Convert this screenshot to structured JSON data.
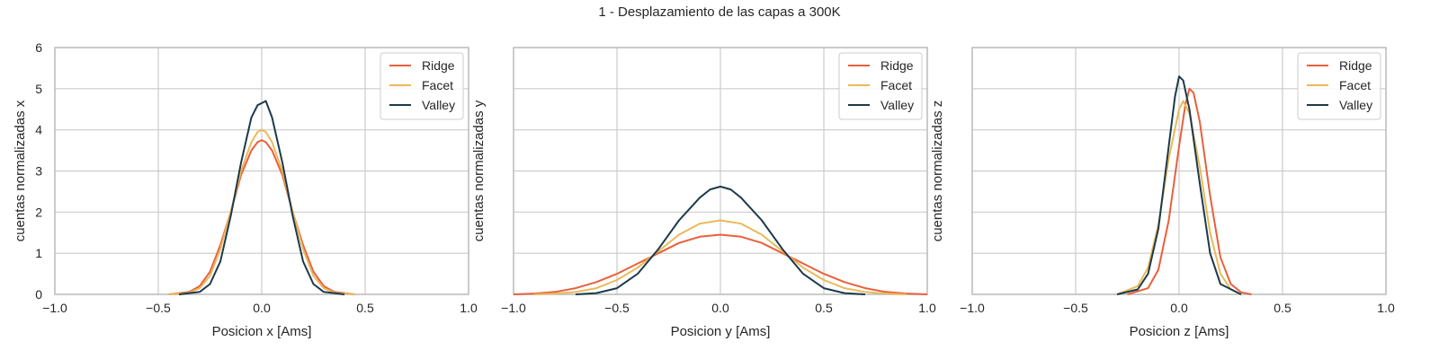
{
  "figure": {
    "title": "1 - Desplazamiento de las capas a 300K"
  },
  "colors": {
    "Ridge": "#e8603c",
    "Facet": "#e9b95a",
    "Valley": "#1c3a4a",
    "grid": "#cccccc",
    "axes": "#bdbdbd"
  },
  "chart_data": [
    {
      "type": "line",
      "xlabel": "Posicion x [Ams]",
      "ylabel": "cuentas normalizadas x",
      "xlim": [
        -1.0,
        1.0
      ],
      "ylim": [
        0,
        6
      ],
      "xticks": [
        "−1.0",
        "−0.5",
        "0.0",
        "0.5",
        "1.0"
      ],
      "yticks": [
        "0",
        "1",
        "2",
        "3",
        "4",
        "5",
        "6"
      ],
      "show_yticklabels": true,
      "grid": true,
      "legend": "top-right",
      "series": [
        {
          "name": "Ridge",
          "x": [
            -0.45,
            -0.35,
            -0.3,
            -0.25,
            -0.2,
            -0.15,
            -0.1,
            -0.05,
            -0.02,
            0.0,
            0.02,
            0.05,
            0.1,
            0.15,
            0.2,
            0.25,
            0.3,
            0.35,
            0.45
          ],
          "y": [
            0.0,
            0.06,
            0.2,
            0.55,
            1.2,
            2.0,
            2.9,
            3.5,
            3.7,
            3.75,
            3.7,
            3.5,
            2.9,
            2.0,
            1.2,
            0.55,
            0.2,
            0.06,
            0.0
          ]
        },
        {
          "name": "Facet",
          "x": [
            -0.45,
            -0.35,
            -0.3,
            -0.25,
            -0.2,
            -0.15,
            -0.1,
            -0.05,
            -0.02,
            0.0,
            0.02,
            0.05,
            0.1,
            0.15,
            0.2,
            0.25,
            0.3,
            0.35,
            0.45
          ],
          "y": [
            0.0,
            0.04,
            0.15,
            0.45,
            1.1,
            2.0,
            3.0,
            3.7,
            3.95,
            4.0,
            3.95,
            3.7,
            3.0,
            2.0,
            1.1,
            0.45,
            0.15,
            0.04,
            0.0
          ]
        },
        {
          "name": "Valley",
          "x": [
            -0.4,
            -0.3,
            -0.25,
            -0.2,
            -0.15,
            -0.1,
            -0.05,
            -0.02,
            0.0,
            0.02,
            0.05,
            0.1,
            0.15,
            0.2,
            0.25,
            0.3,
            0.4
          ],
          "y": [
            0.0,
            0.06,
            0.25,
            0.8,
            1.9,
            3.2,
            4.3,
            4.6,
            4.65,
            4.7,
            4.3,
            3.2,
            1.9,
            0.8,
            0.25,
            0.06,
            0.0
          ]
        }
      ]
    },
    {
      "type": "line",
      "xlabel": "Posicion y [Ams]",
      "ylabel": "cuentas normalizadas y",
      "xlim": [
        -1.0,
        1.0
      ],
      "ylim": [
        0,
        6
      ],
      "xticks": [
        "−1.0",
        "−0.5",
        "0.0",
        "0.5",
        "1.0"
      ],
      "yticks": [
        "0",
        "1",
        "2",
        "3",
        "4",
        "5",
        "6"
      ],
      "show_yticklabels": false,
      "grid": true,
      "legend": "top-right",
      "series": [
        {
          "name": "Ridge",
          "x": [
            -1.0,
            -0.9,
            -0.8,
            -0.7,
            -0.6,
            -0.5,
            -0.4,
            -0.3,
            -0.2,
            -0.1,
            0.0,
            0.1,
            0.2,
            0.3,
            0.4,
            0.5,
            0.6,
            0.7,
            0.8,
            0.9,
            1.0
          ],
          "y": [
            0.0,
            0.02,
            0.06,
            0.15,
            0.3,
            0.5,
            0.75,
            1.0,
            1.25,
            1.4,
            1.45,
            1.4,
            1.25,
            1.0,
            0.75,
            0.5,
            0.3,
            0.15,
            0.06,
            0.02,
            0.0
          ]
        },
        {
          "name": "Facet",
          "x": [
            -0.9,
            -0.8,
            -0.7,
            -0.6,
            -0.5,
            -0.4,
            -0.3,
            -0.2,
            -0.1,
            0.0,
            0.1,
            0.2,
            0.3,
            0.4,
            0.5,
            0.6,
            0.7,
            0.8,
            0.9
          ],
          "y": [
            0.0,
            0.02,
            0.06,
            0.15,
            0.35,
            0.65,
            1.05,
            1.45,
            1.72,
            1.8,
            1.72,
            1.45,
            1.05,
            0.65,
            0.35,
            0.15,
            0.06,
            0.02,
            0.0
          ]
        },
        {
          "name": "Valley",
          "x": [
            -0.7,
            -0.6,
            -0.5,
            -0.4,
            -0.3,
            -0.2,
            -0.1,
            -0.05,
            0.0,
            0.05,
            0.1,
            0.2,
            0.3,
            0.4,
            0.5,
            0.6,
            0.7
          ],
          "y": [
            0.0,
            0.03,
            0.15,
            0.5,
            1.1,
            1.8,
            2.35,
            2.55,
            2.62,
            2.55,
            2.35,
            1.8,
            1.1,
            0.5,
            0.15,
            0.03,
            0.0
          ]
        }
      ]
    },
    {
      "type": "line",
      "xlabel": "Posicion z [Ams]",
      "ylabel": "cuentas normalizadas z",
      "xlim": [
        -1.0,
        1.0
      ],
      "ylim": [
        0,
        6
      ],
      "xticks": [
        "−1.0",
        "−0.5",
        "0.0",
        "0.5",
        "1.0"
      ],
      "yticks": [
        "0",
        "1",
        "2",
        "3",
        "4",
        "5",
        "6"
      ],
      "show_yticklabels": false,
      "grid": true,
      "legend": "top-right",
      "series": [
        {
          "name": "Ridge",
          "x": [
            -0.25,
            -0.15,
            -0.1,
            -0.05,
            0.0,
            0.03,
            0.05,
            0.07,
            0.1,
            0.15,
            0.2,
            0.25,
            0.3,
            0.35
          ],
          "y": [
            0.0,
            0.15,
            0.6,
            1.8,
            3.6,
            4.6,
            5.0,
            4.9,
            4.2,
            2.4,
            0.9,
            0.25,
            0.05,
            0.0
          ]
        },
        {
          "name": "Facet",
          "x": [
            -0.3,
            -0.2,
            -0.15,
            -0.1,
            -0.05,
            0.0,
            0.02,
            0.05,
            0.1,
            0.15,
            0.2,
            0.25,
            0.3
          ],
          "y": [
            0.0,
            0.2,
            0.65,
            1.7,
            3.3,
            4.5,
            4.7,
            4.4,
            3.1,
            1.5,
            0.5,
            0.12,
            0.0
          ]
        },
        {
          "name": "Valley",
          "x": [
            -0.3,
            -0.2,
            -0.15,
            -0.1,
            -0.05,
            -0.02,
            0.0,
            0.02,
            0.05,
            0.1,
            0.15,
            0.2,
            0.3
          ],
          "y": [
            0.0,
            0.12,
            0.5,
            1.6,
            3.6,
            4.8,
            5.3,
            5.2,
            4.5,
            2.7,
            1.0,
            0.25,
            0.0
          ]
        }
      ]
    }
  ]
}
